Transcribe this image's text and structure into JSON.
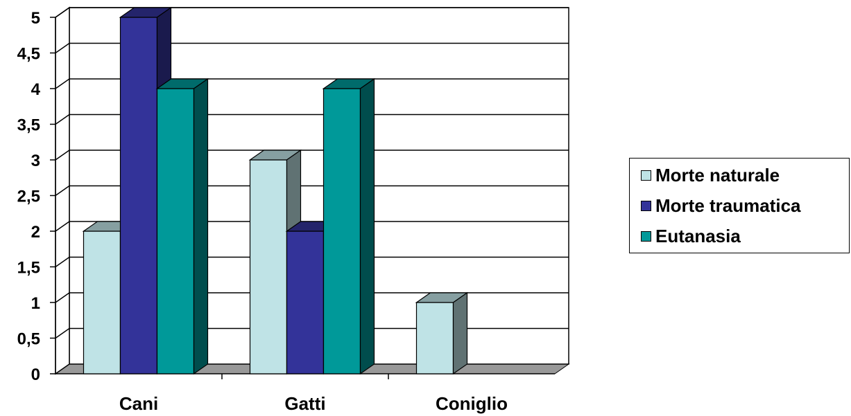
{
  "chart_data": {
    "type": "bar",
    "categories": [
      "Cani",
      "Gatti",
      "Coniglio"
    ],
    "series": [
      {
        "name": "Morte naturale",
        "values": [
          2,
          3,
          1
        ],
        "color": "#BFE3E6"
      },
      {
        "name": "Morte traumatica",
        "values": [
          5,
          2,
          0
        ],
        "color": "#333399"
      },
      {
        "name": "Eutanasia",
        "values": [
          4,
          4,
          0
        ],
        "color": "#009999"
      }
    ],
    "ylim": [
      0,
      5
    ],
    "yticks": [
      "0",
      "0,5",
      "1",
      "1,5",
      "2",
      "2,5",
      "3",
      "3,5",
      "4",
      "4,5",
      "5"
    ],
    "grid": true,
    "legend_position": "right",
    "title": "",
    "xlabel": "",
    "ylabel": ""
  }
}
